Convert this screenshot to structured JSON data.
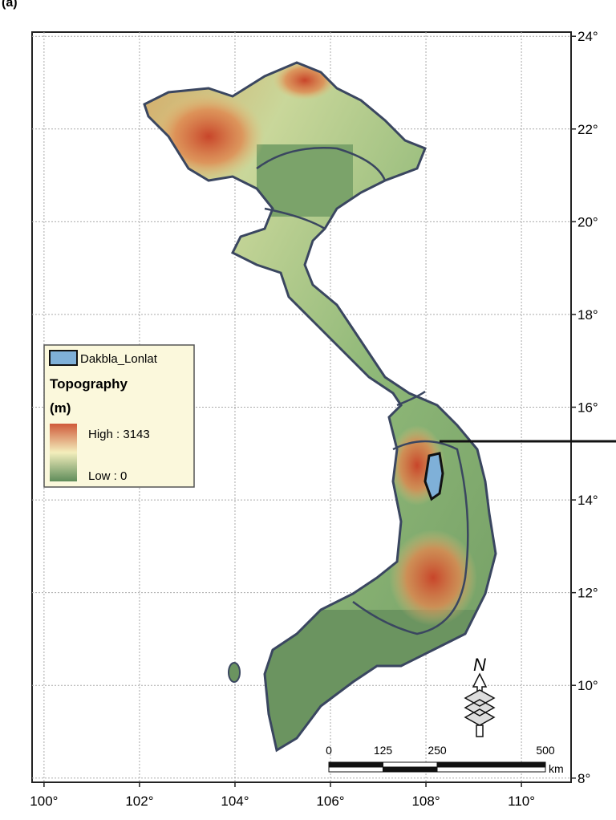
{
  "panel_label": "(a)",
  "map": {
    "lonlim": [
      99.75,
      111.04
    ],
    "latlim": [
      7.91,
      24.09
    ],
    "lon_ticks": [
      {
        "value": 100,
        "label": "100°"
      },
      {
        "value": 102,
        "label": "102°"
      },
      {
        "value": 104,
        "label": "104°"
      },
      {
        "value": 106,
        "label": "106°"
      },
      {
        "value": 108,
        "label": "108°"
      },
      {
        "value": 110,
        "label": "110°"
      }
    ],
    "lat_ticks": [
      {
        "value": 24,
        "label": "24°"
      },
      {
        "value": 22,
        "label": "22°"
      },
      {
        "value": 20,
        "label": "20°"
      },
      {
        "value": 18,
        "label": "18°"
      },
      {
        "value": 16,
        "label": "16°"
      },
      {
        "value": 14,
        "label": "14°"
      },
      {
        "value": 12,
        "label": "12°"
      },
      {
        "value": 10,
        "label": "10°"
      },
      {
        "value": 8,
        "label": "8°"
      }
    ],
    "grid": true
  },
  "legend": {
    "basin": "Dakbla_Lonlat",
    "title": "Topography",
    "unit": "(m)",
    "high": "High : 3143",
    "low": "Low : 0"
  },
  "scale_bar": {
    "ticks": [
      0,
      125,
      250,
      500
    ],
    "unit": "km"
  },
  "north_arrow": "N"
}
